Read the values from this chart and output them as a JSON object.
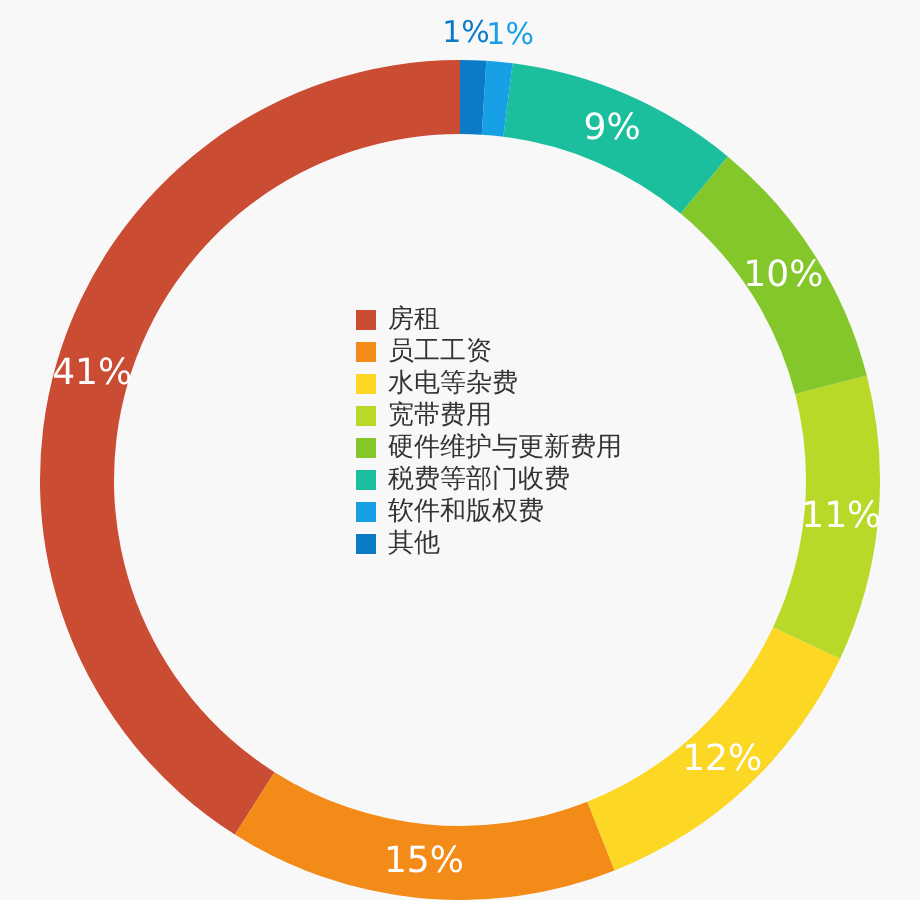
{
  "chart_data": {
    "type": "donut",
    "categories": [
      "房租",
      "员工工资",
      "水电等杂费",
      "宽带费用",
      "硬件维护与更新费用",
      "税费等部门收费",
      "软件和版权费",
      "其他"
    ],
    "values": [
      41,
      15,
      12,
      11,
      10,
      9,
      1,
      1
    ],
    "value_labels": [
      "41%",
      "15%",
      "12%",
      "11%",
      "10%",
      "9%",
      "1%",
      "1%"
    ],
    "colors": [
      "#c94c33",
      "#f28b17",
      "#fcd723",
      "#b8d927",
      "#84c72a",
      "#1bbf9e",
      "#18a0e6",
      "#0b7ac7"
    ],
    "legend": "center"
  }
}
